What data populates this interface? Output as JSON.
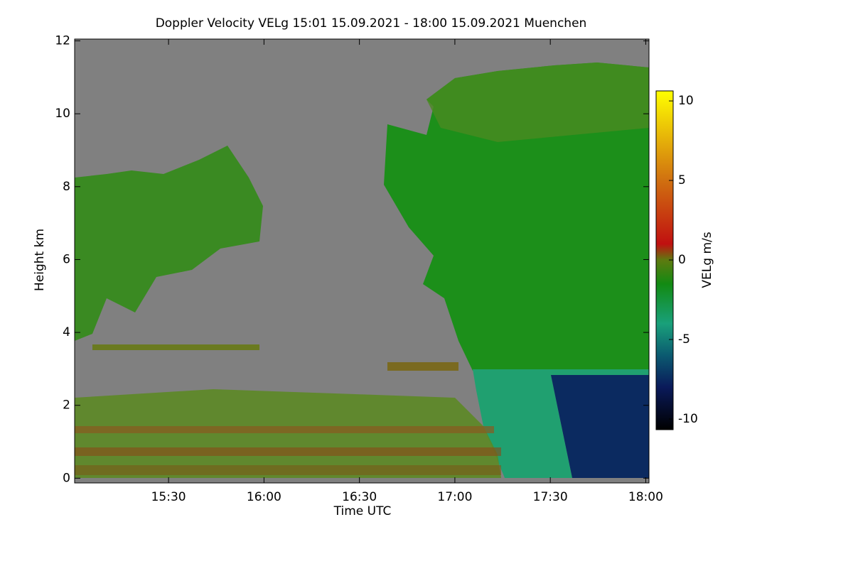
{
  "chart_data": {
    "type": "heatmap",
    "title": "Doppler Velocity VELg   15:01 15.09.2021 - 18:00 15.09.2021 Muenchen",
    "x_label": "Time UTC",
    "y_label": "Height km",
    "colorbar_label": "VELg m/s",
    "xlim": [
      15.008,
      18.017
    ],
    "xticks": [
      {
        "value": 15.5,
        "label": "15:30"
      },
      {
        "value": 16.0,
        "label": "16:00"
      },
      {
        "value": 16.5,
        "label": "16:30"
      },
      {
        "value": 17.0,
        "label": "17:00"
      },
      {
        "value": 17.5,
        "label": "17:30"
      },
      {
        "value": 18.0,
        "label": "18:00"
      }
    ],
    "ylim": [
      -0.13,
      12.05
    ],
    "yticks": [
      0,
      2,
      4,
      6,
      8,
      10,
      12
    ],
    "zlim": [
      -10.67,
      10.63
    ],
    "zticks": [
      -10,
      -5,
      0,
      5,
      10
    ],
    "colorscale": [
      [
        -10.67,
        "#000000"
      ],
      [
        -8,
        "#0a1a5a"
      ],
      [
        -6,
        "#0b5a70"
      ],
      [
        -4,
        "#19a07a"
      ],
      [
        -1.5,
        "#128a12"
      ],
      [
        0,
        "#5e7a10"
      ],
      [
        1,
        "#c01010"
      ],
      [
        5,
        "#d07010"
      ],
      [
        10.63,
        "#ffff00"
      ]
    ]
  }
}
